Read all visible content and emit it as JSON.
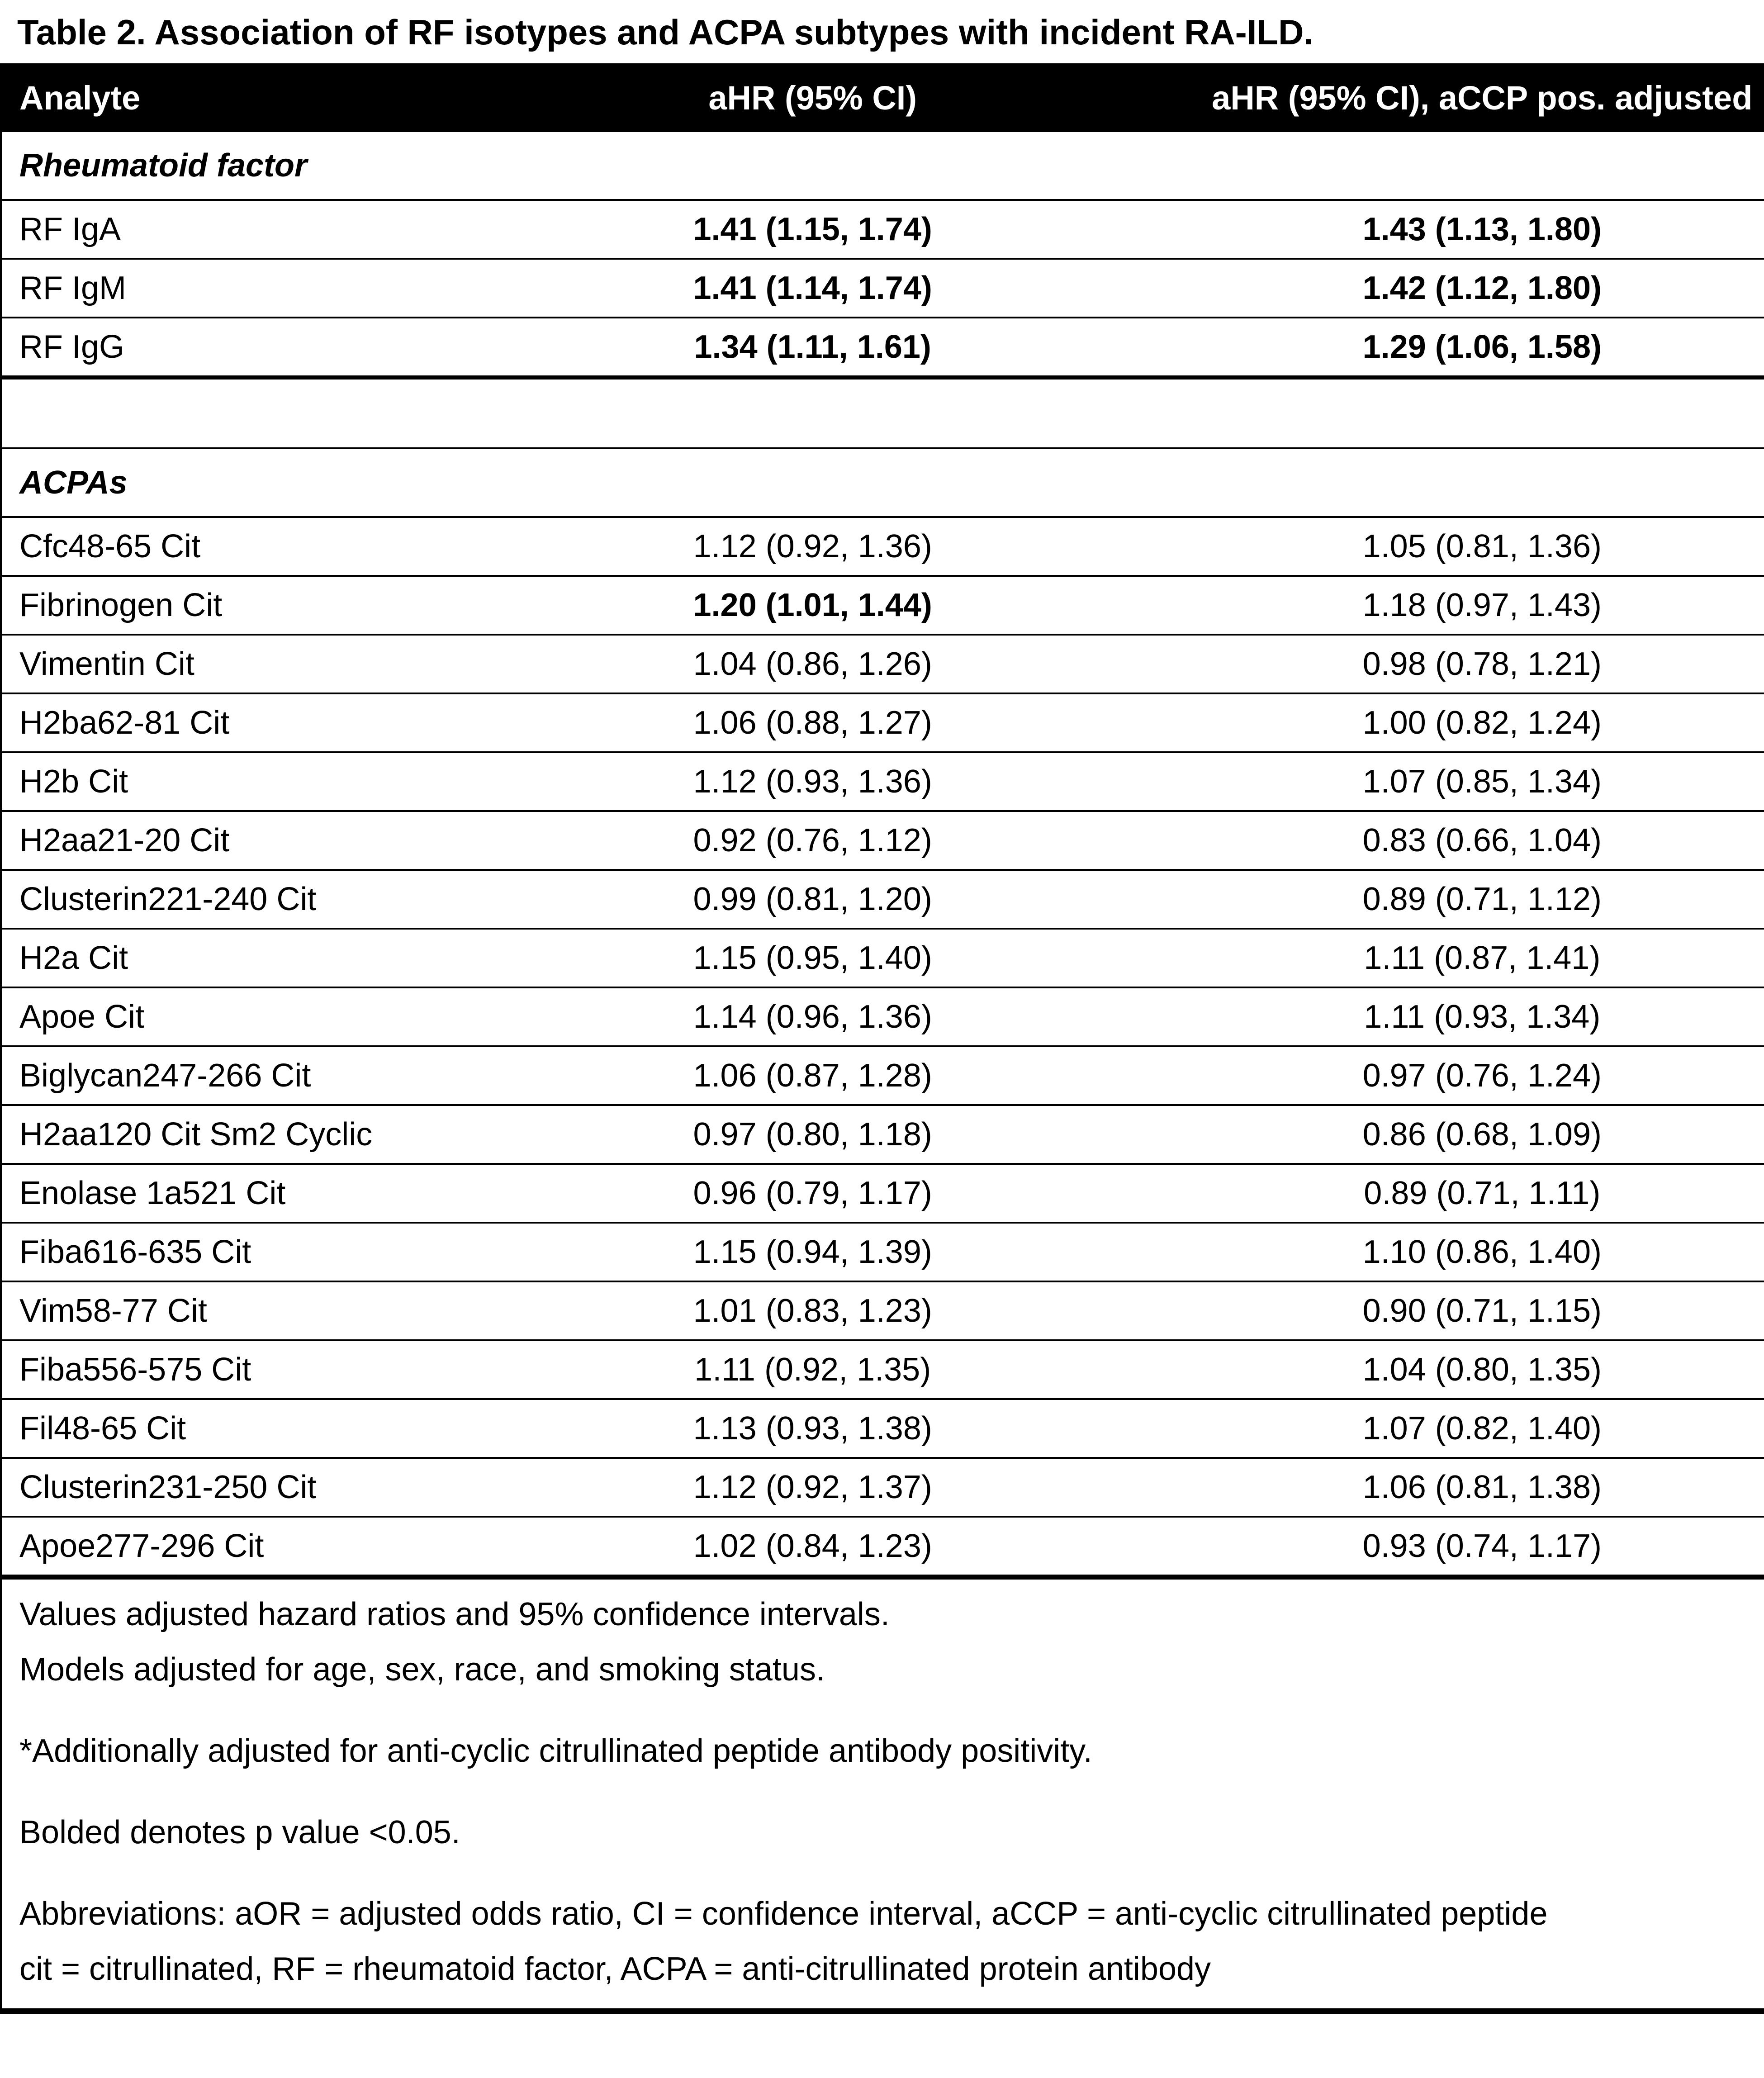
{
  "title": "Table 2. Association of RF isotypes and ACPA subtypes with incident RA-ILD.",
  "table": {
    "columns": [
      "Analyte",
      "aHR (95% CI)",
      "aHR (95% CI), aCCP pos. adjusted"
    ],
    "rows": [
      {
        "type": "section",
        "analyte": "Rheumatoid factor"
      },
      {
        "type": "data",
        "analyte": "RF IgA",
        "ahr": "1.41 (1.15, 1.74)",
        "ahr_bold": true,
        "adj": "1.43 (1.13, 1.80)",
        "adj_bold": true
      },
      {
        "type": "data",
        "analyte": "RF IgM",
        "ahr": "1.41 (1.14, 1.74)",
        "ahr_bold": true,
        "adj": "1.42 (1.12, 1.80)",
        "adj_bold": true
      },
      {
        "type": "data",
        "analyte": "RF IgG",
        "ahr": "1.34 (1.11, 1.61)",
        "ahr_bold": true,
        "adj": "1.29 (1.06, 1.58)",
        "adj_bold": true,
        "thick": true
      },
      {
        "type": "spacer"
      },
      {
        "type": "section",
        "analyte": "ACPAs"
      },
      {
        "type": "data",
        "analyte": "Cfc48-65 Cit",
        "ahr": "1.12 (0.92, 1.36)",
        "ahr_bold": false,
        "adj": "1.05 (0.81, 1.36)",
        "adj_bold": false
      },
      {
        "type": "data",
        "analyte": "Fibrinogen Cit",
        "ahr": "1.20 (1.01, 1.44)",
        "ahr_bold": true,
        "adj": "1.18 (0.97, 1.43)",
        "adj_bold": false
      },
      {
        "type": "data",
        "analyte": "Vimentin Cit",
        "ahr": "1.04 (0.86, 1.26)",
        "ahr_bold": false,
        "adj": "0.98 (0.78, 1.21)",
        "adj_bold": false
      },
      {
        "type": "data",
        "analyte": "H2ba62-81 Cit",
        "ahr": "1.06 (0.88, 1.27)",
        "ahr_bold": false,
        "adj": "1.00 (0.82, 1.24)",
        "adj_bold": false
      },
      {
        "type": "data",
        "analyte": "H2b Cit",
        "ahr": "1.12 (0.93, 1.36)",
        "ahr_bold": false,
        "adj": "1.07 (0.85, 1.34)",
        "adj_bold": false
      },
      {
        "type": "data",
        "analyte": "H2aa21-20 Cit",
        "ahr": "0.92 (0.76, 1.12)",
        "ahr_bold": false,
        "adj": "0.83 (0.66, 1.04)",
        "adj_bold": false
      },
      {
        "type": "data",
        "analyte": "Clusterin221-240 Cit",
        "ahr": "0.99 (0.81, 1.20)",
        "ahr_bold": false,
        "adj": "0.89 (0.71, 1.12)",
        "adj_bold": false
      },
      {
        "type": "data",
        "analyte": "H2a Cit",
        "ahr": "1.15 (0.95, 1.40)",
        "ahr_bold": false,
        "adj": "1.11 (0.87, 1.41)",
        "adj_bold": false
      },
      {
        "type": "data",
        "analyte": "Apoe Cit",
        "ahr": "1.14 (0.96, 1.36)",
        "ahr_bold": false,
        "adj": "1.11 (0.93, 1.34)",
        "adj_bold": false
      },
      {
        "type": "data",
        "analyte": "Biglycan247-266 Cit",
        "ahr": "1.06 (0.87, 1.28)",
        "ahr_bold": false,
        "adj": "0.97 (0.76, 1.24)",
        "adj_bold": false
      },
      {
        "type": "data",
        "analyte": "H2aa120 Cit Sm2 Cyclic",
        "ahr": "0.97 (0.80, 1.18)",
        "ahr_bold": false,
        "adj": "0.86 (0.68, 1.09)",
        "adj_bold": false
      },
      {
        "type": "data",
        "analyte": "Enolase 1a521 Cit",
        "ahr": "0.96 (0.79, 1.17)",
        "ahr_bold": false,
        "adj": "0.89 (0.71, 1.11)",
        "adj_bold": false
      },
      {
        "type": "data",
        "analyte": "Fiba616-635 Cit",
        "ahr": "1.15 (0.94, 1.39)",
        "ahr_bold": false,
        "adj": "1.10 (0.86, 1.40)",
        "adj_bold": false
      },
      {
        "type": "data",
        "analyte": "Vim58-77 Cit",
        "ahr": "1.01 (0.83, 1.23)",
        "ahr_bold": false,
        "adj": "0.90 (0.71, 1.15)",
        "adj_bold": false
      },
      {
        "type": "data",
        "analyte": "Fiba556-575 Cit",
        "ahr": "1.11 (0.92, 1.35)",
        "ahr_bold": false,
        "adj": "1.04 (0.80, 1.35)",
        "adj_bold": false
      },
      {
        "type": "data",
        "analyte": "Fil48-65 Cit",
        "ahr": "1.13 (0.93, 1.38)",
        "ahr_bold": false,
        "adj": "1.07 (0.82, 1.40)",
        "adj_bold": false
      },
      {
        "type": "data",
        "analyte": "Clusterin231-250 Cit",
        "ahr": "1.12 (0.92, 1.37)",
        "ahr_bold": false,
        "adj": "1.06 (0.81, 1.38)",
        "adj_bold": false
      },
      {
        "type": "data",
        "analyte": "Apoe277-296 Cit",
        "ahr": "1.02 (0.84, 1.23)",
        "ahr_bold": false,
        "adj": "0.93 (0.74, 1.17)",
        "adj_bold": false,
        "final": true
      }
    ]
  },
  "footnotes": [
    {
      "text": "Values adjusted hazard ratios and 95% confidence intervals.",
      "gap_before": false
    },
    {
      "text": "Models adjusted for age, sex, race, and smoking status.",
      "gap_before": false
    },
    {
      "text": "*Additionally adjusted for anti-cyclic citrullinated peptide antibody positivity.",
      "gap_before": true
    },
    {
      "text": "Bolded denotes p value <0.05.",
      "gap_before": true
    },
    {
      "text": "Abbreviations: aOR = adjusted odds ratio, CI = confidence interval, aCCP = anti-cyclic citrullinated peptide",
      "gap_before": true
    },
    {
      "text": "cit = citrullinated, RF = rheumatoid factor, ACPA = anti-citrullinated protein antibody",
      "gap_before": false
    }
  ],
  "colors": {
    "header_bg": "#000000",
    "header_text": "#ffffff",
    "text": "#000000",
    "background": "#ffffff"
  }
}
